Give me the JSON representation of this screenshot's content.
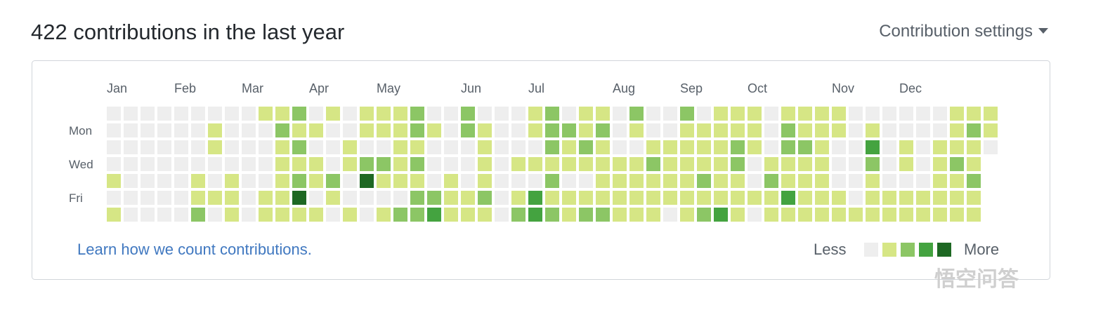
{
  "header": {
    "title": "422 contributions in the last year",
    "settings": "Contribution settings"
  },
  "graph": {
    "months": [
      "Jan",
      "Feb",
      "Mar",
      "Apr",
      "May",
      "Jun",
      "Jul",
      "Aug",
      "Sep",
      "Oct",
      "Nov",
      "Dec"
    ],
    "days": [
      null,
      "Mon",
      null,
      "Wed",
      null,
      "Fri",
      null
    ],
    "colors": [
      "#eeeeee",
      "#d6e685",
      "#8cc665",
      "#44a340",
      "#1e6823"
    ],
    "levels": [
      [
        0,
        0,
        0,
        0,
        0,
        0,
        0,
        0,
        0,
        1,
        1,
        2,
        0,
        1,
        0,
        1,
        1,
        1,
        2,
        0,
        0,
        2,
        0,
        0,
        0,
        1,
        2,
        0,
        1,
        1,
        0,
        2,
        0,
        0,
        2,
        0,
        1,
        1,
        1,
        0,
        1,
        1,
        1,
        1,
        0,
        0,
        0,
        0,
        0,
        0,
        1,
        1,
        1
      ],
      [
        0,
        0,
        0,
        0,
        0,
        0,
        1,
        0,
        0,
        0,
        2,
        1,
        1,
        0,
        0,
        1,
        1,
        1,
        2,
        1,
        0,
        2,
        1,
        0,
        0,
        1,
        2,
        2,
        1,
        2,
        0,
        1,
        0,
        0,
        1,
        1,
        1,
        1,
        1,
        0,
        2,
        1,
        1,
        1,
        0,
        1,
        0,
        0,
        0,
        0,
        1,
        2,
        1
      ],
      [
        0,
        0,
        0,
        0,
        0,
        0,
        1,
        0,
        0,
        0,
        1,
        2,
        0,
        0,
        1,
        0,
        0,
        1,
        1,
        0,
        0,
        0,
        1,
        0,
        0,
        0,
        2,
        1,
        2,
        1,
        0,
        0,
        1,
        1,
        1,
        1,
        1,
        2,
        1,
        0,
        2,
        2,
        1,
        0,
        0,
        3,
        0,
        1,
        0,
        1,
        1,
        1,
        0
      ],
      [
        0,
        0,
        0,
        0,
        0,
        0,
        0,
        0,
        0,
        0,
        1,
        1,
        1,
        0,
        1,
        2,
        2,
        1,
        2,
        0,
        0,
        0,
        1,
        0,
        1,
        1,
        1,
        1,
        1,
        1,
        1,
        1,
        2,
        1,
        1,
        1,
        1,
        2,
        0,
        1,
        1,
        1,
        1,
        0,
        0,
        2,
        0,
        1,
        0,
        1,
        2,
        1,
        null
      ],
      [
        1,
        0,
        0,
        0,
        0,
        1,
        0,
        1,
        0,
        0,
        1,
        2,
        1,
        2,
        0,
        4,
        1,
        1,
        1,
        0,
        1,
        0,
        1,
        0,
        0,
        0,
        2,
        0,
        0,
        1,
        1,
        1,
        1,
        1,
        1,
        2,
        1,
        1,
        0,
        2,
        1,
        1,
        1,
        0,
        0,
        1,
        0,
        0,
        0,
        1,
        1,
        2,
        null
      ],
      [
        0,
        0,
        0,
        0,
        0,
        1,
        1,
        1,
        0,
        1,
        1,
        4,
        0,
        1,
        0,
        0,
        0,
        0,
        2,
        2,
        1,
        1,
        2,
        0,
        1,
        3,
        1,
        1,
        1,
        1,
        1,
        1,
        1,
        1,
        1,
        1,
        1,
        1,
        1,
        1,
        3,
        1,
        1,
        1,
        0,
        1,
        1,
        1,
        1,
        1,
        1,
        1,
        null
      ],
      [
        1,
        0,
        0,
        0,
        0,
        2,
        0,
        1,
        0,
        1,
        1,
        1,
        1,
        0,
        1,
        0,
        1,
        2,
        2,
        3,
        1,
        1,
        1,
        0,
        2,
        3,
        2,
        1,
        2,
        2,
        1,
        1,
        1,
        0,
        1,
        2,
        3,
        1,
        0,
        1,
        1,
        1,
        1,
        1,
        1,
        1,
        1,
        1,
        1,
        1,
        1,
        1,
        null
      ]
    ]
  },
  "footer": {
    "link": "Learn how we count contributions."
  },
  "legend": {
    "less": "Less",
    "levels": [
      0,
      1,
      2,
      3,
      4
    ],
    "more": "More"
  },
  "watermark": "悟空问答"
}
